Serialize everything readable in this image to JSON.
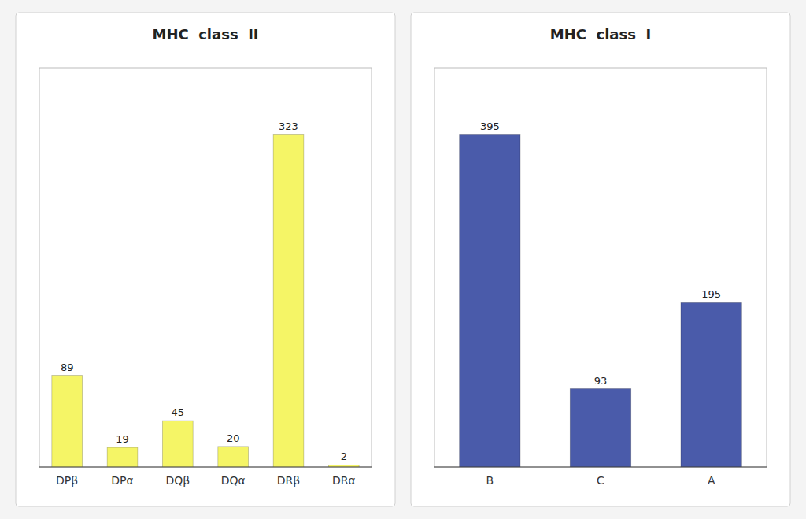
{
  "chart_data": [
    {
      "type": "bar",
      "title": "MHC  class  II",
      "categories": [
        "DPβ",
        "DPα",
        "DQβ",
        "DQα",
        "DRβ",
        "DRα"
      ],
      "values": [
        89,
        19,
        45,
        20,
        323,
        2
      ],
      "color": "#F5F566",
      "ylim": [
        0,
        387.6
      ],
      "data_labels": true,
      "tick_labels": "x",
      "grid": false
    },
    {
      "type": "bar",
      "title": "MHC  class  I",
      "categories": [
        "B",
        "C",
        "A"
      ],
      "values": [
        395,
        93,
        195
      ],
      "color": "#4A5BAA",
      "ylim": [
        0,
        474
      ],
      "data_labels": true,
      "tick_labels": "x",
      "grid": false
    }
  ]
}
